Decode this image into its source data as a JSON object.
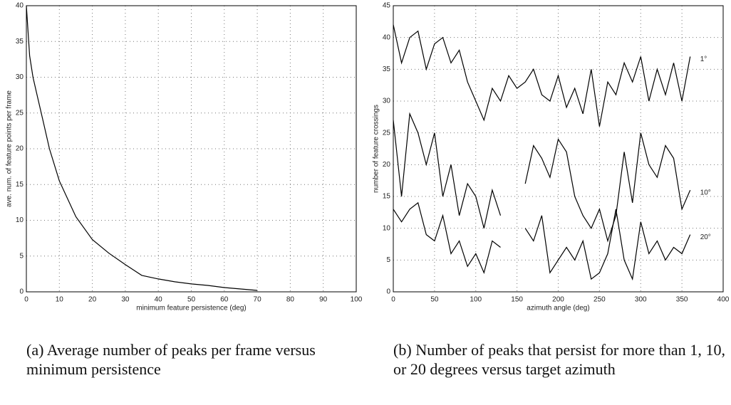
{
  "chart_data": [
    {
      "type": "line",
      "caption": "(a) Average number of peaks per frame versus minimum persistence",
      "xlabel": "minimum feature persistence (deg)",
      "ylabel": "ave. num. of feature points per frame",
      "x": [
        0,
        1,
        2,
        3,
        5,
        7,
        10,
        15,
        20,
        25,
        30,
        35,
        40,
        45,
        50,
        55,
        60,
        65,
        70
      ],
      "values": [
        40,
        33,
        30,
        28,
        24,
        20,
        15.5,
        10.5,
        7.3,
        5.4,
        3.8,
        2.3,
        1.8,
        1.4,
        1.1,
        0.9,
        0.6,
        0.4,
        0.2
      ],
      "color": "#000000",
      "xlim": [
        0,
        100
      ],
      "xticks": [
        0,
        10,
        20,
        30,
        40,
        50,
        60,
        70,
        80,
        90,
        100
      ],
      "ylim": [
        0,
        40
      ],
      "yticks": [
        0,
        5,
        10,
        15,
        20,
        25,
        30,
        35,
        40
      ],
      "grid": true
    },
    {
      "type": "line",
      "caption": "(b) Number of peaks that persist for more than 1, 10, or 20 degrees versus target azimuth",
      "xlabel": "azimuth angle (deg)",
      "ylabel": "number of feature crossings",
      "x": [
        0,
        10,
        20,
        30,
        40,
        50,
        60,
        70,
        80,
        90,
        100,
        110,
        120,
        130,
        140,
        150,
        160,
        170,
        180,
        190,
        200,
        210,
        220,
        230,
        240,
        250,
        260,
        270,
        280,
        290,
        300,
        310,
        320,
        330,
        340,
        350,
        360
      ],
      "series": [
        {
          "name": "1°",
          "color": "#000000",
          "values": [
            42,
            36,
            40,
            41,
            35,
            39,
            40,
            36,
            38,
            33,
            30,
            27,
            32,
            30,
            34,
            32,
            33,
            35,
            31,
            30,
            34,
            29,
            32,
            28,
            35,
            26,
            33,
            31,
            36,
            33,
            37,
            30,
            35,
            31,
            36,
            30,
            37
          ]
        },
        {
          "name": "10°",
          "color": "#000000",
          "values": [
            27,
            15,
            28,
            25,
            20,
            25,
            15,
            20,
            12,
            17,
            15,
            10,
            16,
            12,
            null,
            null,
            17,
            23,
            21,
            18,
            24,
            22,
            15,
            12,
            10,
            13,
            8,
            12,
            22,
            14,
            25,
            20,
            18,
            23,
            21,
            13,
            16
          ]
        },
        {
          "name": "20°",
          "color": "#000000",
          "values": [
            13,
            11,
            13,
            14,
            9,
            8,
            12,
            6,
            8,
            4,
            6,
            3,
            8,
            7,
            null,
            null,
            10,
            8,
            12,
            3,
            5,
            7,
            5,
            8,
            2,
            3,
            6,
            13,
            5,
            2,
            11,
            6,
            8,
            5,
            7,
            6,
            9
          ]
        }
      ],
      "xlim": [
        0,
        400
      ],
      "xticks": [
        0,
        50,
        100,
        150,
        200,
        250,
        300,
        350,
        400
      ],
      "ylim": [
        0,
        45
      ],
      "yticks": [
        0,
        5,
        10,
        15,
        20,
        25,
        30,
        35,
        40,
        45
      ],
      "grid": true
    }
  ]
}
